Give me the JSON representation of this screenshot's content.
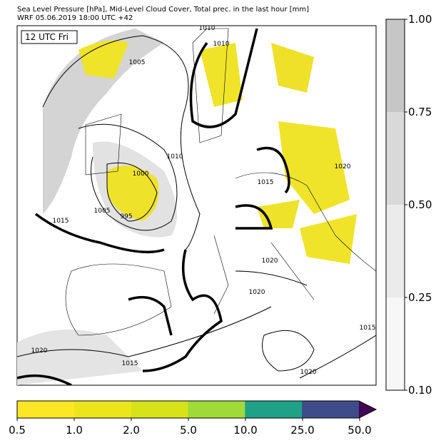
{
  "header": {
    "line1": "Sea Level Pressure [hPa], Mid-Level Cloud Cover, Total prec. in the last hour [mm]",
    "line2": "WRF 05.06.2019 18:00 UTC +42"
  },
  "map": {
    "time_label": "12 UTC Fri",
    "isobar_labels": [
      "1010",
      "1005",
      "1010",
      "1000",
      "1005",
      "995",
      "1015",
      "1015",
      "1020",
      "1020",
      "1020",
      "1015",
      "1020",
      "1020",
      "1015",
      "1010"
    ]
  },
  "cloud_colorbar": {
    "colors": [
      "#f7f7f7",
      "#ebebeb",
      "#d9d9d9",
      "#c6c6c6"
    ],
    "ticks": [
      {
        "value": 0.1,
        "label": "0.10"
      },
      {
        "value": 0.25,
        "label": "0.25"
      },
      {
        "value": 0.5,
        "label": "0.50"
      },
      {
        "value": 0.75,
        "label": "0.75"
      },
      {
        "value": 1,
        "label": "1.00"
      }
    ]
  },
  "precip_colorbar": {
    "colors": [
      "#fde725",
      "#ede51b",
      "#d8e219",
      "#a0da39",
      "#1fa187",
      "#3e4c8a",
      "#440154"
    ],
    "ticks": [
      0.5,
      {
        "value": 1,
        "label": "1.0"
      },
      {
        "value": 2,
        "label": "2.0"
      },
      {
        "value": 5,
        "label": "5.0"
      },
      {
        "value": 10,
        "label": "10.0"
      },
      {
        "value": 25,
        "label": "25.0"
      },
      {
        "value": 50,
        "label": "50.0"
      }
    ]
  }
}
